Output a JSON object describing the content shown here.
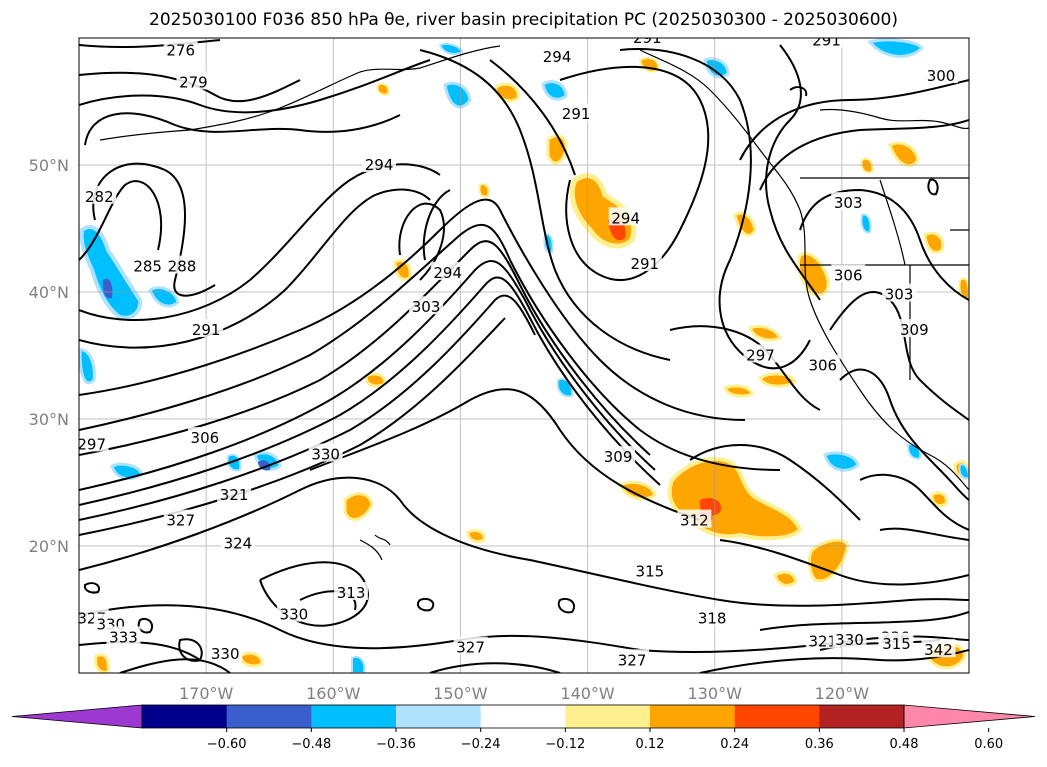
{
  "title": "2025030100 F036 850 hPa θe, river basin precipitation PC (2025030300 - 2025030600)",
  "map": {
    "projection_extent": {
      "lon": [
        -180,
        -110
      ],
      "lat": [
        10,
        60
      ]
    },
    "gridlines": true,
    "lat_ticks": [
      {
        "value": 50,
        "label": "50°N"
      },
      {
        "value": 40,
        "label": "40°N"
      },
      {
        "value": 30,
        "label": "30°N"
      },
      {
        "value": 20,
        "label": "20°N"
      }
    ],
    "lon_ticks": [
      {
        "value": -170,
        "label": "170°W"
      },
      {
        "value": -160,
        "label": "160°W"
      },
      {
        "value": -150,
        "label": "150°W"
      },
      {
        "value": -140,
        "label": "140°W"
      },
      {
        "value": -130,
        "label": "130°W"
      },
      {
        "value": -120,
        "label": "120°W"
      }
    ],
    "contour_labels": [
      {
        "text": "276",
        "lon": -172,
        "lat": 59
      },
      {
        "text": "279",
        "lon": -171,
        "lat": 56.5
      },
      {
        "text": "282",
        "lon": -178.4,
        "lat": 47.5
      },
      {
        "text": "285",
        "lon": -174.6,
        "lat": 42.0
      },
      {
        "text": "288",
        "lon": -171.9,
        "lat": 42.0
      },
      {
        "text": "291",
        "lon": -170,
        "lat": 37.0
      },
      {
        "text": "294",
        "lon": -156.4,
        "lat": 50.0
      },
      {
        "text": "294",
        "lon": -151,
        "lat": 41.5
      },
      {
        "text": "294",
        "lon": -142.4,
        "lat": 58.5
      },
      {
        "text": "291",
        "lon": -140.9,
        "lat": 54.0
      },
      {
        "text": "291",
        "lon": -135.3,
        "lat": 60.0
      },
      {
        "text": "291",
        "lon": -121.2,
        "lat": 59.8
      },
      {
        "text": "294",
        "lon": -137,
        "lat": 45.8
      },
      {
        "text": "291",
        "lon": -135.5,
        "lat": 42.2
      },
      {
        "text": "300",
        "lon": -112.2,
        "lat": 57.0
      },
      {
        "text": "303",
        "lon": -119.5,
        "lat": 47.0
      },
      {
        "text": "306",
        "lon": -119.5,
        "lat": 41.3
      },
      {
        "text": "303",
        "lon": -115.5,
        "lat": 39.8
      },
      {
        "text": "309",
        "lon": -114.3,
        "lat": 37.0
      },
      {
        "text": "297",
        "lon": -126.4,
        "lat": 35.0
      },
      {
        "text": "306",
        "lon": -121.5,
        "lat": 34.2
      },
      {
        "text": "303",
        "lon": -152.7,
        "lat": 38.8
      },
      {
        "text": "297",
        "lon": -179,
        "lat": 28.0
      },
      {
        "text": "306",
        "lon": -170.1,
        "lat": 28.5
      },
      {
        "text": "309",
        "lon": -137.6,
        "lat": 27.0
      },
      {
        "text": "330",
        "lon": -160.6,
        "lat": 27.2
      },
      {
        "text": "321",
        "lon": -167.8,
        "lat": 24.0
      },
      {
        "text": "327",
        "lon": -172,
        "lat": 22.0
      },
      {
        "text": "324",
        "lon": -167.5,
        "lat": 20.2
      },
      {
        "text": "312",
        "lon": -131.6,
        "lat": 22.0
      },
      {
        "text": "315",
        "lon": -135.1,
        "lat": 18.0
      },
      {
        "text": "313",
        "lon": -158.6,
        "lat": 16.3
      },
      {
        "text": "330",
        "lon": -163.1,
        "lat": 14.6
      },
      {
        "text": "318",
        "lon": -130.2,
        "lat": 14.3
      },
      {
        "text": "327",
        "lon": -149.2,
        "lat": 12.0
      },
      {
        "text": "327",
        "lon": -136.5,
        "lat": 11.0
      },
      {
        "text": "330",
        "lon": -168.5,
        "lat": 11.5
      },
      {
        "text": "321",
        "lon": -121.5,
        "lat": 12.5
      },
      {
        "text": "330",
        "lon": -119.4,
        "lat": 12.6
      },
      {
        "text": "336",
        "lon": -115.8,
        "lat": 12.8
      },
      {
        "text": "342",
        "lon": -112.4,
        "lat": 11.8
      },
      {
        "text": "327",
        "lon": -179,
        "lat": 14.3
      },
      {
        "text": "330",
        "lon": -177.5,
        "lat": 13.8
      },
      {
        "text": "333",
        "lon": -176.5,
        "lat": 12.8
      },
      {
        "text": "315",
        "lon": -115.7,
        "lat": 12.3
      }
    ]
  },
  "colorbar": {
    "ticks": [
      "−0.60",
      "−0.48",
      "−0.36",
      "−0.24",
      "−0.12",
      "0.12",
      "0.24",
      "0.36",
      "0.48",
      "0.60"
    ],
    "colors": {
      "below": "#9d38d0",
      "bins": [
        "#00008b",
        "#3a5fcd",
        "#00bfff",
        "#b0e2ff",
        "#ffffff",
        "#fff08f",
        "#ffa500",
        "#ff4500",
        "#b22222"
      ],
      "above": "#ff88aa"
    }
  }
}
